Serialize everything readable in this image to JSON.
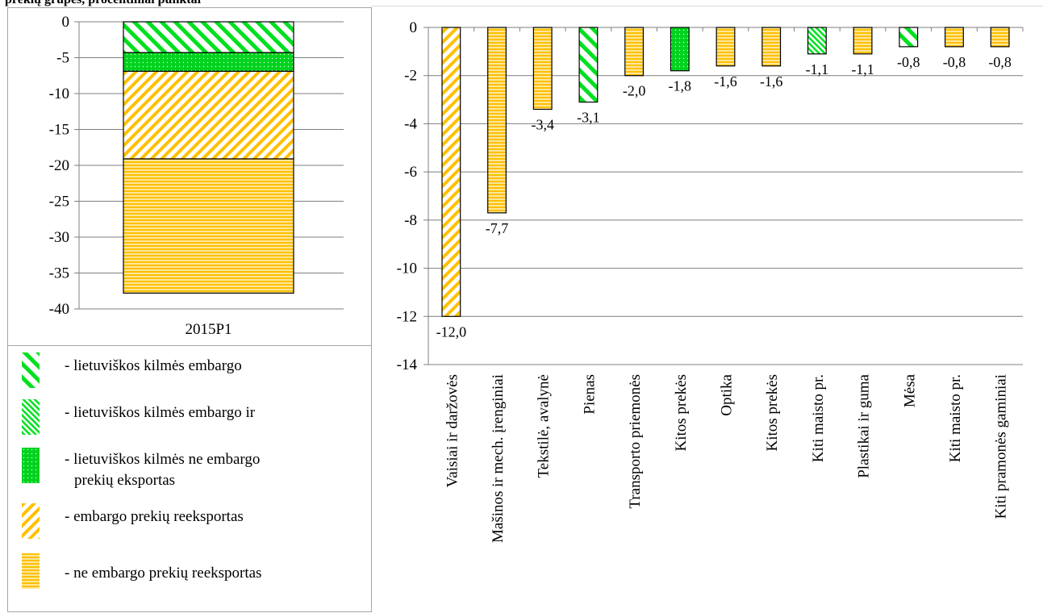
{
  "page": {
    "title": "prekių grupes, procentiniai punktai"
  },
  "colors": {
    "green_fill": "#00e020",
    "yellow_fill": "#ffc000",
    "yellow_light": "#ffe699",
    "gridline": "#7f7f7f",
    "outline": "#000000"
  },
  "legend": {
    "items": [
      {
        "label": "- lietuviškos kilmės embargo",
        "label2": "",
        "pattern": "green-diag-wide",
        "icon": "green-diagonal-swatch"
      },
      {
        "label": "- lietuviškos kilmės embargo ir",
        "label2": "",
        "pattern": "green-diag-thin",
        "icon": "green-thin-diagonal-swatch"
      },
      {
        "label": "- lietuviškos kilmės ne embargo",
        "label2": "prekių eksportas",
        "pattern": "green-dots",
        "icon": "green-dotted-swatch"
      },
      {
        "label": "- embargo prekių reeksportas",
        "label2": "",
        "pattern": "yellow-diag",
        "icon": "yellow-diagonal-swatch"
      },
      {
        "label": "- ne embargo prekių reeksportas",
        "label2": "",
        "pattern": "yellow-horiz",
        "icon": "yellow-horizontal-swatch"
      }
    ]
  },
  "chart_data": [
    {
      "type": "bar",
      "stacked": true,
      "categories": [
        "2015P1"
      ],
      "series": [
        {
          "name": "- lietuviškos kilmės embargo",
          "values": [
            -4.3
          ],
          "pattern": "green-diag-wide"
        },
        {
          "name": "- lietuviškos kilmės ne embargo prekių eksportas",
          "values": [
            -2.6
          ],
          "pattern": "green-dots"
        },
        {
          "name": "- embargo prekių reeksportas",
          "values": [
            -12.2
          ],
          "pattern": "yellow-diag"
        },
        {
          "name": "- ne embargo prekių reeksportas",
          "values": [
            -18.7
          ],
          "pattern": "yellow-horiz"
        }
      ],
      "ylim": [
        -40,
        0
      ],
      "yticks": [
        0,
        -5,
        -10,
        -15,
        -20,
        -25,
        -30,
        -35,
        -40
      ],
      "grid": true
    },
    {
      "type": "bar",
      "categories": [
        "Vaisiai ir daržovės",
        "Mašinos ir mech. įrenginiai",
        "Tekstilė, avalynė",
        "Pienas",
        "Transporto priemonės",
        "Kitos prekės",
        "Optika",
        "Kitos prekės",
        "Kiti maisto pr.",
        "Plastikai ir guma",
        "Mėsa",
        "Kiti maisto pr.",
        "Kiti pramonės gaminiai"
      ],
      "values": [
        -12.0,
        -7.7,
        -3.4,
        -3.1,
        -2.0,
        -1.8,
        -1.6,
        -1.6,
        -1.1,
        -1.1,
        -0.8,
        -0.8,
        -0.8
      ],
      "data_labels": [
        "-12,0",
        "-7,7",
        "-3,4",
        "-3,1",
        "-2,0",
        "-1,8",
        "-1,6",
        "-1,6",
        "-1,1",
        "-1,1",
        "-0,8",
        "-0,8",
        "-0,8"
      ],
      "patterns": [
        "yellow-diag",
        "yellow-horiz",
        "yellow-horiz",
        "green-diag-wide",
        "yellow-horiz",
        "green-dots",
        "yellow-horiz",
        "yellow-horiz",
        "green-diag-thin",
        "yellow-horiz",
        "green-diag-wide",
        "yellow-horiz",
        "yellow-horiz"
      ],
      "ylim": [
        -14,
        0
      ],
      "yticks": [
        0,
        -2,
        -4,
        -6,
        -8,
        -10,
        -12,
        -14
      ],
      "grid": true
    }
  ]
}
